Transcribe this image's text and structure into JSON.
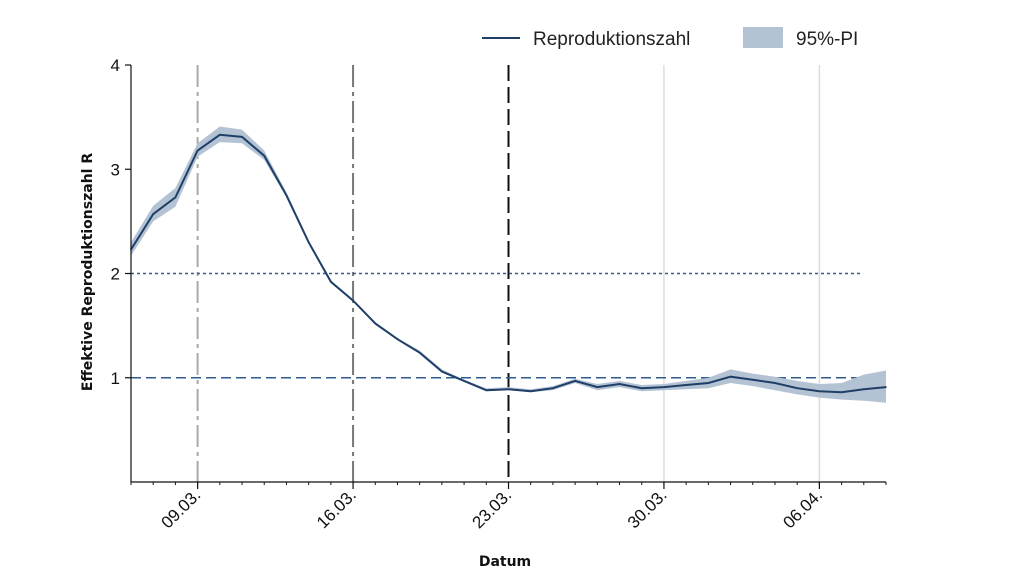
{
  "chart_data": {
    "type": "line",
    "xlabel": "Datum",
    "ylabel": "Effektive Reproduktionszahl R",
    "ylim": [
      0,
      4
    ],
    "yticks": [
      1,
      2,
      3,
      4
    ],
    "xlim": [
      "2020-03-06",
      "2020-04-09"
    ],
    "xticks": [
      "2020-03-09",
      "2020-03-16",
      "2020-03-23",
      "2020-03-30",
      "2020-04-06"
    ],
    "xtick_labels": [
      "09.03.",
      "16.03.",
      "23.03.",
      "30.03.",
      "06.04."
    ],
    "legend_position": "top-right",
    "legend": [
      "Reproduktionszahl",
      "95%-PI"
    ],
    "colors": {
      "line": "#1f3f66",
      "band": "#b4c3d4",
      "ref2": "#2f5b8f",
      "ref1": "#2f5b8f"
    },
    "reference_lines": [
      {
        "y": 2,
        "style": "dotted"
      },
      {
        "y": 1,
        "style": "dashed"
      }
    ],
    "vertical_markers": [
      {
        "x": "2020-03-09",
        "color": "#aaaaaa",
        "style": "dashed"
      },
      {
        "x": "2020-03-16",
        "color": "#777777",
        "style": "dashed"
      },
      {
        "x": "2020-03-23",
        "color": "#111111",
        "style": "dashed"
      },
      {
        "x": "2020-03-30",
        "color": "#dddddd",
        "style": "solid"
      },
      {
        "x": "2020-04-06",
        "color": "#dddddd",
        "style": "solid"
      }
    ],
    "x": [
      "2020-03-06",
      "2020-03-07",
      "2020-03-08",
      "2020-03-09",
      "2020-03-10",
      "2020-03-11",
      "2020-03-12",
      "2020-03-13",
      "2020-03-14",
      "2020-03-15",
      "2020-03-16",
      "2020-03-17",
      "2020-03-18",
      "2020-03-19",
      "2020-03-20",
      "2020-03-21",
      "2020-03-22",
      "2020-03-23",
      "2020-03-24",
      "2020-03-25",
      "2020-03-26",
      "2020-03-27",
      "2020-03-28",
      "2020-03-29",
      "2020-03-30",
      "2020-03-31",
      "2020-04-01",
      "2020-04-02",
      "2020-04-03",
      "2020-04-04",
      "2020-04-05",
      "2020-04-06",
      "2020-04-07",
      "2020-04-08",
      "2020-04-09"
    ],
    "series": [
      {
        "name": "Reproduktionszahl",
        "values": [
          2.23,
          2.57,
          2.73,
          3.18,
          3.33,
          3.31,
          3.13,
          2.75,
          2.3,
          1.92,
          1.74,
          1.52,
          1.37,
          1.24,
          1.06,
          0.97,
          0.88,
          0.89,
          0.87,
          0.9,
          0.97,
          0.91,
          0.94,
          0.9,
          0.91,
          0.93,
          0.95,
          1.01,
          0.98,
          0.95,
          0.9,
          0.87,
          0.86,
          0.89,
          0.91
        ]
      },
      {
        "name": "95%-PI",
        "lower": [
          2.17,
          2.5,
          2.64,
          3.12,
          3.26,
          3.25,
          3.09,
          2.73,
          2.29,
          1.91,
          1.73,
          1.51,
          1.36,
          1.23,
          1.05,
          0.96,
          0.87,
          0.88,
          0.86,
          0.88,
          0.95,
          0.88,
          0.91,
          0.87,
          0.88,
          0.89,
          0.9,
          0.95,
          0.92,
          0.88,
          0.84,
          0.81,
          0.79,
          0.78,
          0.76
        ],
        "upper": [
          2.3,
          2.65,
          2.82,
          3.25,
          3.41,
          3.38,
          3.18,
          2.78,
          2.32,
          1.93,
          1.75,
          1.53,
          1.38,
          1.26,
          1.08,
          0.98,
          0.9,
          0.91,
          0.89,
          0.92,
          0.99,
          0.94,
          0.97,
          0.93,
          0.94,
          0.97,
          1.0,
          1.08,
          1.04,
          1.01,
          0.97,
          0.94,
          0.95,
          1.03,
          1.07
        ]
      }
    ]
  }
}
